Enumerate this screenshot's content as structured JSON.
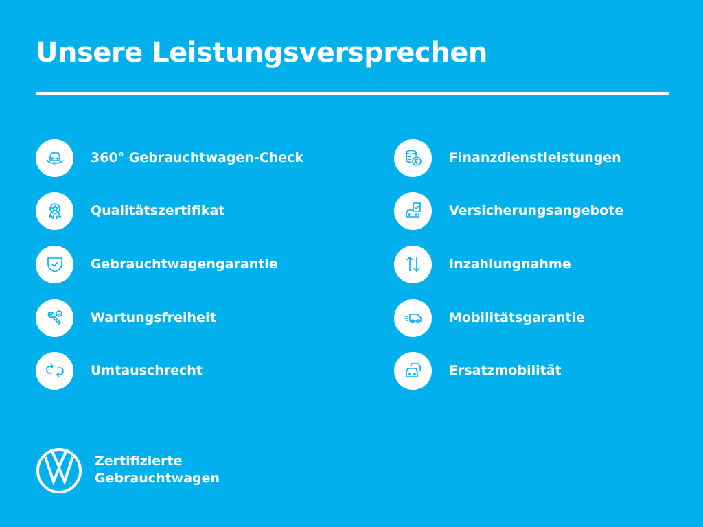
{
  "title": "Unsere Leistungsversprechen",
  "colors": {
    "background": "#03b0ee",
    "foreground": "#ffffff"
  },
  "left_items": [
    {
      "label": "360° Gebrauchtwagen-Check",
      "icon": "car-360-icon"
    },
    {
      "label": "Qualitätszertifikat",
      "icon": "award-badge-icon"
    },
    {
      "label": "Gebrauchtwagengarantie",
      "icon": "shield-check-icon"
    },
    {
      "label": "Wartungsfreiheit",
      "icon": "wrench-check-icon"
    },
    {
      "label": "Umtauschrecht",
      "icon": "exchange-arrows-icon"
    }
  ],
  "right_items": [
    {
      "label": "Finanzdienstleistungen",
      "icon": "coins-euro-icon"
    },
    {
      "label": "Versicherungsangebote",
      "icon": "car-document-icon"
    },
    {
      "label": "Inzahlungnahme",
      "icon": "up-down-arrows-icon"
    },
    {
      "label": "Mobilitätsgarantie",
      "icon": "fast-van-icon"
    },
    {
      "label": "Ersatzmobilität",
      "icon": "two-cars-icon"
    }
  ],
  "brand": {
    "line1": "Zertifizierte",
    "line2": "Gebrauchtwagen",
    "logo": "vw-logo"
  }
}
